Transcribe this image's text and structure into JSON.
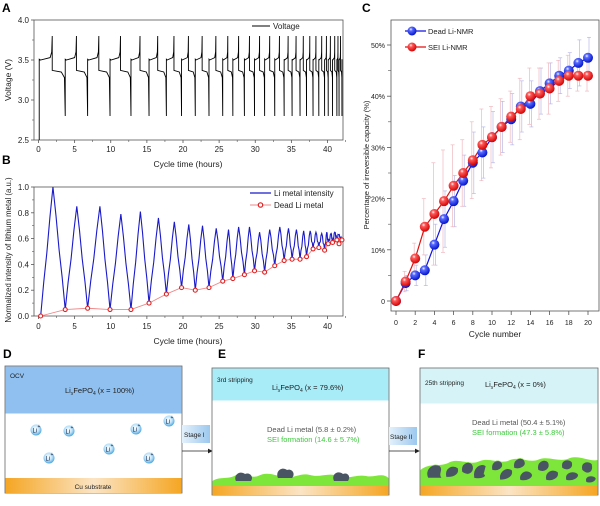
{
  "chart_data": [
    {
      "id": "A",
      "panel_label": "A",
      "type": "line",
      "title": "",
      "xlabel": "Cycle time (hours)",
      "ylabel": "Voltage (V)",
      "xlim": [
        -1,
        42
      ],
      "ylim": [
        2.5,
        4.0
      ],
      "xticks": [
        "0",
        "5",
        "10",
        "15",
        "20",
        "25",
        "30",
        "35",
        "40"
      ],
      "yticks": [
        "2.5",
        "3.0",
        "3.5",
        "4.0"
      ],
      "legend": {
        "position": "top-right",
        "entries": [
          "Voltage"
        ]
      },
      "series": [
        {
          "name": "Voltage",
          "color": "#000000",
          "description": "Galvanostatic charge/discharge cycling; charge plateau ~3.5 V peaking ~3.8 V, discharge plateau ~3.37 V dropping to 2.8 V; cycles shorten over time",
          "cycle_end_times_h": [
            3.7,
            6.8,
            9.9,
            12.8,
            15.3,
            17.7,
            19.8,
            21.7,
            23.6,
            25.5,
            26.9,
            28.5,
            29.9,
            31.3,
            32.7,
            34.0,
            35.1,
            36.2,
            37.1,
            38.0,
            38.8,
            39.6,
            40.1,
            40.7,
            41.3,
            41.6,
            42.0
          ],
          "charge_plateau_V": 3.51,
          "charge_peak_V": 3.8,
          "discharge_plateau_V": 3.37,
          "discharge_cutoff_V": 2.8
        }
      ]
    },
    {
      "id": "B",
      "panel_label": "B",
      "type": "line",
      "title": "",
      "xlabel": "Cycle time (hours)",
      "ylabel": "Normalized intensity of lithium metal (a.u.)",
      "xlim": [
        -1,
        42
      ],
      "ylim": [
        0,
        1.0
      ],
      "xticks": [
        "0",
        "5",
        "10",
        "15",
        "20",
        "25",
        "30",
        "35",
        "40"
      ],
      "yticks": [
        "0.0",
        "0.2",
        "0.4",
        "0.6",
        "0.8",
        "1.0"
      ],
      "legend": {
        "position": "top-right",
        "entries": [
          "Li metal intensity",
          "Dead Li metal"
        ]
      },
      "series": [
        {
          "name": "Li metal intensity",
          "color": "#1a1ac8",
          "peaks": [
            [
              2.0,
              1.0
            ],
            [
              5.3,
              0.85
            ],
            [
              8.5,
              0.85
            ],
            [
              11.4,
              0.79
            ],
            [
              14.1,
              0.81
            ],
            [
              16.6,
              0.76
            ],
            [
              18.8,
              0.73
            ],
            [
              20.8,
              0.71
            ],
            [
              22.7,
              0.7
            ],
            [
              24.6,
              0.68
            ],
            [
              26.3,
              0.67
            ],
            [
              27.7,
              0.69
            ],
            [
              29.2,
              0.69
            ],
            [
              30.6,
              0.65
            ],
            [
              32.0,
              0.67
            ],
            [
              33.4,
              0.69
            ],
            [
              34.6,
              0.68
            ],
            [
              35.7,
              0.67
            ],
            [
              36.7,
              0.66
            ],
            [
              37.6,
              0.66
            ],
            [
              38.4,
              0.65
            ],
            [
              39.2,
              0.64
            ],
            [
              39.9,
              0.65
            ],
            [
              40.5,
              0.64
            ],
            [
              41.0,
              0.65
            ],
            [
              41.5,
              0.63
            ]
          ],
          "troughs": [
            [
              0.3,
              0.0
            ],
            [
              3.7,
              0.05
            ],
            [
              6.8,
              0.06
            ],
            [
              9.9,
              0.05
            ],
            [
              12.8,
              0.05
            ],
            [
              15.3,
              0.1
            ],
            [
              17.7,
              0.17
            ],
            [
              19.8,
              0.22
            ],
            [
              21.7,
              0.2
            ],
            [
              23.6,
              0.22
            ],
            [
              25.5,
              0.27
            ],
            [
              26.9,
              0.29
            ],
            [
              28.5,
              0.32
            ],
            [
              29.9,
              0.35
            ],
            [
              31.3,
              0.34
            ],
            [
              32.7,
              0.39
            ],
            [
              34.0,
              0.43
            ],
            [
              35.1,
              0.44
            ],
            [
              36.2,
              0.44
            ],
            [
              37.1,
              0.46
            ],
            [
              38.0,
              0.52
            ],
            [
              38.8,
              0.53
            ],
            [
              39.6,
              0.51
            ],
            [
              40.1,
              0.56
            ],
            [
              40.7,
              0.57
            ],
            [
              41.3,
              0.59
            ],
            [
              42.0,
              0.59
            ]
          ]
        },
        {
          "name": "Dead Li metal",
          "color": "#e03030",
          "x": [
            0.3,
            3.7,
            6.8,
            9.9,
            12.8,
            15.3,
            17.7,
            19.8,
            21.7,
            23.6,
            25.5,
            26.9,
            28.5,
            29.9,
            31.3,
            32.7,
            34.0,
            35.1,
            36.2,
            37.1,
            38.0,
            38.8,
            39.6,
            40.1,
            40.7,
            41.3,
            41.6,
            42.0
          ],
          "y": [
            0.0,
            0.05,
            0.06,
            0.05,
            0.05,
            0.1,
            0.17,
            0.22,
            0.2,
            0.22,
            0.27,
            0.29,
            0.32,
            0.35,
            0.34,
            0.39,
            0.43,
            0.44,
            0.44,
            0.46,
            0.52,
            0.53,
            0.51,
            0.56,
            0.57,
            0.59,
            0.56,
            0.59
          ]
        }
      ]
    },
    {
      "id": "C",
      "panel_label": "C",
      "type": "line",
      "title": "",
      "xlabel": "Cycle number",
      "ylabel": "Percentage of irreversible capacity (%)",
      "xlim": [
        -0.5,
        21
      ],
      "ylim": [
        -2,
        55
      ],
      "xticks": [
        "0",
        "2",
        "4",
        "6",
        "8",
        "10",
        "12",
        "14",
        "16",
        "18",
        "20"
      ],
      "yticks": [
        "0",
        "10%",
        "20%",
        "30%",
        "40%",
        "50%"
      ],
      "legend": {
        "position": "top-left",
        "entries": [
          "Dead Li-NMR",
          "SEI Li-NMR"
        ]
      },
      "x": [
        0,
        1,
        2,
        3,
        4,
        5,
        6,
        7,
        8,
        9,
        10,
        11,
        12,
        13,
        14,
        15,
        16,
        17,
        18,
        19,
        20
      ],
      "series": [
        {
          "name": "Dead Li-NMR",
          "color": "#1010e0",
          "values": [
            0,
            3.5,
            5,
            6,
            11,
            16,
            19.5,
            23.5,
            27,
            29,
            32,
            34,
            35.5,
            38,
            38.5,
            41,
            42.5,
            44,
            45,
            46.5,
            47.5
          ],
          "error": [
            0,
            1.5,
            2,
            3,
            4,
            5.5,
            5,
            5,
            6,
            5,
            5,
            5,
            5,
            5,
            4.5,
            4.5,
            4,
            3.5,
            3.5,
            4.5,
            4
          ]
        },
        {
          "name": "SEI Li-NMR",
          "color": "#e01010",
          "values": [
            0,
            3.8,
            8.3,
            14.5,
            17,
            19.5,
            22.5,
            25,
            27.5,
            30.5,
            32,
            34,
            36,
            37.5,
            40,
            40.5,
            41.5,
            43,
            44,
            44,
            44
          ],
          "error": [
            0,
            2,
            3,
            5.5,
            10,
            10,
            8,
            6.5,
            7.5,
            7,
            6,
            5.5,
            5,
            6,
            5.5,
            5,
            5,
            4,
            4,
            3,
            3
          ]
        }
      ]
    }
  ],
  "schematics": {
    "D": {
      "label": "D",
      "state": "OCV",
      "cathode": "LixFePO4",
      "x_value": "(x = 100%)",
      "ion_label": "Li",
      "ion_charge": "+",
      "substrate": "Cu substrate"
    },
    "E": {
      "label": "E",
      "state": "3rd stripping",
      "cathode": "LixFePO4",
      "x_value": "(x = 79.6%)",
      "dead_li": "Dead Li metal (5.8 ± 0.2%)",
      "sei": "SEI formation (14.6 ± 5.7%)"
    },
    "F": {
      "label": "F",
      "state": "25th stripping",
      "cathode": "LixFePO4",
      "x_value": "(x = 0%)",
      "dead_li": "Dead Li metal (50.4 ± 5.1%)",
      "sei": "SEI formation (47.3 ± 5.8%)"
    },
    "arrows": [
      "Stage I",
      "Stage II"
    ]
  },
  "colors": {
    "cathode_D": "#8fc0f0",
    "cathode_E": "#a8ecf8",
    "cathode_F": "#d6f4f8",
    "substrate": "#f5a623",
    "sei_green": "#7ee63a",
    "sei_text": "#3cc83c",
    "dead_li": "#4a5563",
    "li_ion": "#5ab0e8"
  }
}
